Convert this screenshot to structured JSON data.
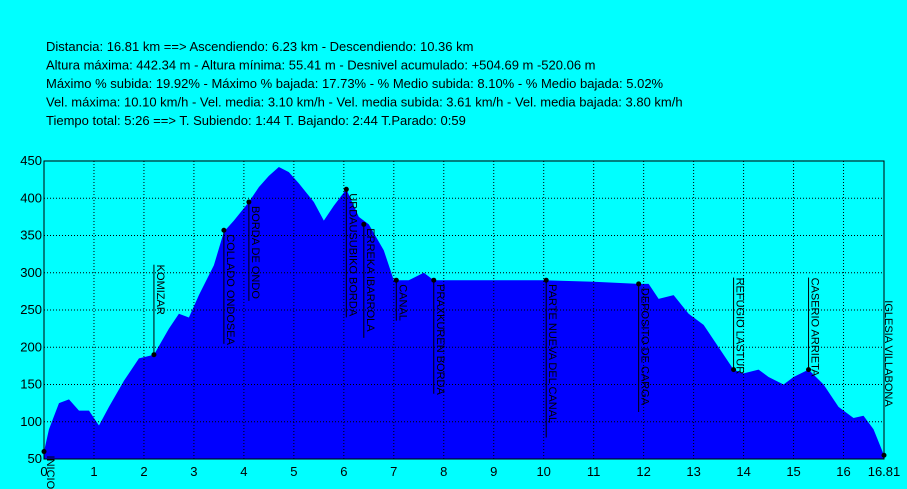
{
  "chart_data": {
    "type": "area",
    "summary": [
      "Distancia: 16.81 km   ==>   Ascendiendo: 6.23 km - Descendiendo: 10.36 km",
      "Altura máxima: 442.34 m - Altura mínima: 55.41 m - Desnivel acumulado: +504.69 m  -520.06 m",
      "Máximo % subida: 19.92%  - Máximo % bajada: 17.73%  - % Medio subida: 8.10%  - % Medio bajada: 5.02%",
      "Vel. máxima: 10.10 km/h - Vel. media: 3.10 km/h - Vel. media subida: 3.61 km/h - Vel. media bajada: 3.80 km/h",
      "Tiempo total: 5:26   ==>   T. Subiendo: 1:44  T. Bajando: 2:44  T.Parado: 0:59"
    ],
    "x": [
      0,
      0.1,
      0.3,
      0.5,
      0.7,
      0.9,
      1.1,
      1.3,
      1.6,
      1.9,
      2.2,
      2.5,
      2.7,
      2.9,
      3.1,
      3.4,
      3.6,
      3.8,
      4.1,
      4.3,
      4.5,
      4.7,
      4.9,
      5.1,
      5.4,
      5.6,
      5.8,
      6.05,
      6.3,
      6.5,
      6.8,
      7.0,
      7.3,
      7.6,
      7.8,
      9,
      10,
      11,
      11.9,
      12.1,
      12.3,
      12.6,
      12.9,
      13.2,
      13.5,
      13.8,
      14.0,
      14.3,
      14.5,
      14.8,
      15.0,
      15.3,
      15.6,
      15.9,
      16.2,
      16.4,
      16.6,
      16.81
    ],
    "values": [
      60,
      90,
      125,
      130,
      115,
      115,
      95,
      120,
      155,
      185,
      190,
      225,
      245,
      240,
      270,
      310,
      355,
      370,
      395,
      415,
      430,
      442,
      435,
      420,
      395,
      370,
      390,
      412,
      375,
      365,
      330,
      290,
      290,
      300,
      290,
      290,
      290,
      288,
      285,
      285,
      265,
      270,
      245,
      230,
      200,
      170,
      165,
      170,
      160,
      150,
      160,
      170,
      150,
      120,
      105,
      108,
      90,
      55
    ],
    "color": "#0000ff",
    "waypoints": {
      "labels": [
        "INICIO",
        "KOMIZAR",
        "COLLADO ONDOSEA",
        "BORDA DE ONDO",
        "URDAUSUBIKO BORDA",
        "ERREKA IBARROLA",
        "CANAL",
        "PRAXKUREN BORDA",
        "PARTE NUEVA DEL CANAL",
        "DEPOSITO DE CARGA",
        "REFUGIO LASTUR",
        "CASERIO ARRIETA",
        "IGLESIA VILLABONA"
      ],
      "x": [
        0,
        2.2,
        3.6,
        4.1,
        6.05,
        6.4,
        7.05,
        7.8,
        10.05,
        11.9,
        13.8,
        15.3,
        16.81
      ],
      "values": [
        60,
        190,
        357,
        395,
        412,
        365,
        290,
        290,
        290,
        285,
        170,
        170,
        55
      ]
    },
    "xlim": [
      0,
      16.81
    ],
    "xticks": [
      0,
      1,
      2,
      3,
      4,
      5,
      6,
      7,
      8,
      9,
      10,
      11,
      12,
      13,
      14,
      15,
      16,
      16.81
    ],
    "ylim": [
      50,
      450
    ],
    "yticks": [
      50,
      100,
      150,
      200,
      250,
      300,
      350,
      400,
      450
    ],
    "grid": true
  }
}
